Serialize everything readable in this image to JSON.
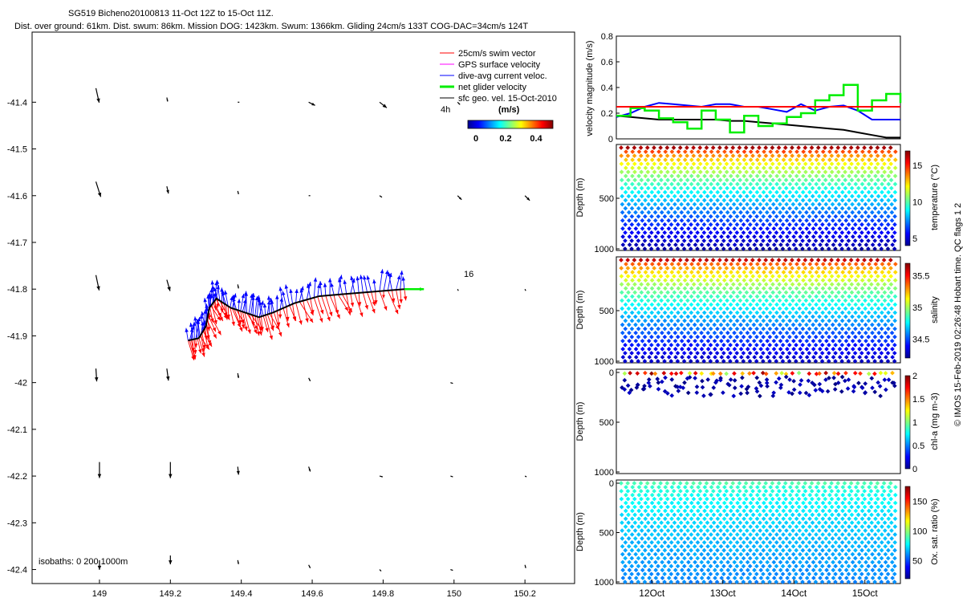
{
  "figure": {
    "title_line1": "SG519 Bicheno20100813 11-Oct 12Z to 15-Oct 11Z.",
    "title_line2": "Dist. over ground: 61km. Dist. swum: 86km. Mission DOG: 1423km. Swum: 1366km. Gliding 24cm/s 133T COG-DAC=34cm/s 124T",
    "credit": "© IMOS 15-Feb-2019 02:26:48 Hobart time. QC flags 1 2"
  },
  "colors": {
    "swim": "#ff0000",
    "gps": "#ff00ff",
    "dac": "#0000ff",
    "net": "#00ee00",
    "sfc": "#000000"
  },
  "chart_data": [
    {
      "type": "map-vectors",
      "x_ticks": [
        "149",
        "149.2",
        "149.4",
        "149.6",
        "149.8",
        "150",
        "150.2"
      ],
      "y_ticks": [
        "-41.4",
        "-41.5",
        "-41.6",
        "-41.7",
        "-41.8",
        "-41.9",
        "-42",
        "-42.1",
        "-42.2",
        "-42.3",
        "-42.4"
      ],
      "xlim": [
        148.81,
        150.34
      ],
      "ylim": [
        -42.43,
        -41.25
      ],
      "legend": [
        {
          "label": "25cm/s swim vector",
          "color": "#ff0000"
        },
        {
          "label": "GPS surface velocity",
          "color": "#ff00ff"
        },
        {
          "label": "dive-avg current veloc.",
          "color": "#0000ff"
        },
        {
          "label": "net glider velocity",
          "color": "#00ee00"
        },
        {
          "label": "sfc geo. vel. 15-Oct-2010",
          "color": "#000000"
        }
      ],
      "colorbar": {
        "label": "(m/s)",
        "ticks": [
          "0",
          "0.2",
          "0.4"
        ],
        "range": [
          0,
          0.55
        ]
      },
      "annotations": {
        "interval": "4h",
        "day_marker": "16",
        "isobaths": "isobaths: 0   200  1000m"
      },
      "track": [
        {
          "lon": 149.25,
          "lat": -41.91
        },
        {
          "lon": 149.28,
          "lat": -41.905
        },
        {
          "lon": 149.3,
          "lat": -41.88
        },
        {
          "lon": 149.31,
          "lat": -41.84
        },
        {
          "lon": 149.33,
          "lat": -41.82
        },
        {
          "lon": 149.37,
          "lat": -41.84
        },
        {
          "lon": 149.41,
          "lat": -41.85
        },
        {
          "lon": 149.45,
          "lat": -41.86
        },
        {
          "lon": 149.49,
          "lat": -41.85
        },
        {
          "lon": 149.55,
          "lat": -41.83
        },
        {
          "lon": 149.62,
          "lat": -41.815
        },
        {
          "lon": 149.7,
          "lat": -41.81
        },
        {
          "lon": 149.78,
          "lat": -41.805
        },
        {
          "lon": 149.86,
          "lat": -41.8
        }
      ],
      "net_velocity": {
        "lon": 149.86,
        "lat": -41.8,
        "dlon": 0.055,
        "dlat": 0
      },
      "surface_vectors": [
        {
          "lon": 148.99,
          "lat": -41.37,
          "u": 0.04,
          "v": -0.18
        },
        {
          "lon": 149.19,
          "lat": -41.39,
          "u": 0.01,
          "v": -0.05
        },
        {
          "lon": 149.39,
          "lat": -41.4,
          "u": 0.02,
          "v": 0.0
        },
        {
          "lon": 149.59,
          "lat": -41.4,
          "u": 0.08,
          "v": -0.04
        },
        {
          "lon": 149.79,
          "lat": -41.4,
          "u": 0.09,
          "v": -0.07
        },
        {
          "lon": 150.01,
          "lat": -41.4,
          "u": 0.03,
          "v": -0.03
        },
        {
          "lon": 148.99,
          "lat": -41.57,
          "u": 0.06,
          "v": -0.19
        },
        {
          "lon": 149.19,
          "lat": -41.58,
          "u": 0.02,
          "v": -0.09
        },
        {
          "lon": 149.39,
          "lat": -41.59,
          "u": 0.01,
          "v": -0.04
        },
        {
          "lon": 149.59,
          "lat": -41.6,
          "u": 0.02,
          "v": 0.0
        },
        {
          "lon": 149.79,
          "lat": -41.6,
          "u": 0.03,
          "v": -0.02
        },
        {
          "lon": 150.01,
          "lat": -41.6,
          "u": 0.05,
          "v": -0.05
        },
        {
          "lon": 150.2,
          "lat": -41.6,
          "u": 0.06,
          "v": -0.06
        },
        {
          "lon": 148.99,
          "lat": -41.77,
          "u": 0.04,
          "v": -0.19
        },
        {
          "lon": 149.19,
          "lat": -41.78,
          "u": 0.04,
          "v": -0.14
        },
        {
          "lon": 149.39,
          "lat": -41.79,
          "u": 0.01,
          "v": -0.05
        },
        {
          "lon": 150.01,
          "lat": -41.8,
          "u": 0.01,
          "v": -0.02
        },
        {
          "lon": 150.2,
          "lat": -41.8,
          "u": 0.01,
          "v": -0.02
        },
        {
          "lon": 148.99,
          "lat": -41.97,
          "u": 0.01,
          "v": -0.16
        },
        {
          "lon": 149.19,
          "lat": -41.97,
          "u": 0.02,
          "v": -0.15
        },
        {
          "lon": 149.39,
          "lat": -41.98,
          "u": 0.01,
          "v": -0.06
        },
        {
          "lon": 149.59,
          "lat": -41.99,
          "u": 0.02,
          "v": -0.04
        },
        {
          "lon": 149.99,
          "lat": -42.0,
          "u": 0.03,
          "v": -0.01
        },
        {
          "lon": 149.0,
          "lat": -42.17,
          "u": 0.0,
          "v": -0.2
        },
        {
          "lon": 149.2,
          "lat": -42.17,
          "u": 0.0,
          "v": -0.2
        },
        {
          "lon": 149.39,
          "lat": -42.18,
          "u": 0.01,
          "v": -0.1
        },
        {
          "lon": 149.59,
          "lat": -42.18,
          "u": 0.02,
          "v": -0.06
        },
        {
          "lon": 149.79,
          "lat": -42.2,
          "u": 0.04,
          "v": -0.01
        },
        {
          "lon": 149.99,
          "lat": -42.2,
          "u": 0.03,
          "v": -0.01
        },
        {
          "lon": 150.2,
          "lat": -42.2,
          "u": 0.02,
          "v": -0.01
        },
        {
          "lon": 149.0,
          "lat": -42.38,
          "u": 0.0,
          "v": -0.12
        },
        {
          "lon": 149.2,
          "lat": -42.37,
          "u": 0.0,
          "v": -0.11
        },
        {
          "lon": 149.39,
          "lat": -42.38,
          "u": 0.01,
          "v": -0.05
        },
        {
          "lon": 149.59,
          "lat": -42.39,
          "u": 0.02,
          "v": -0.04
        },
        {
          "lon": 149.79,
          "lat": -42.4,
          "u": 0.02,
          "v": -0.02
        },
        {
          "lon": 149.99,
          "lat": -42.4,
          "u": 0.03,
          "v": -0.01
        },
        {
          "lon": 150.2,
          "lat": -42.39,
          "u": 0.01,
          "v": -0.04
        }
      ]
    },
    {
      "type": "line",
      "ylabel": "velocity magnitude (m/s)",
      "ylim": [
        0,
        0.8
      ],
      "y_ticks": [
        0,
        0.2,
        0.4,
        0.6,
        0.8
      ],
      "x": [
        11.5,
        11.7,
        11.9,
        12.1,
        12.3,
        12.5,
        12.7,
        12.9,
        13.1,
        13.3,
        13.5,
        13.7,
        13.9,
        14.1,
        14.3,
        14.5,
        14.7,
        14.9,
        15.1,
        15.3,
        15.5
      ],
      "series": [
        {
          "color": "#0000ff",
          "values": [
            0.17,
            0.2,
            0.25,
            0.28,
            0.27,
            0.26,
            0.25,
            0.27,
            0.27,
            0.25,
            0.25,
            0.23,
            0.21,
            0.27,
            0.22,
            0.25,
            0.26,
            0.22,
            0.15,
            0.15,
            0.15
          ]
        },
        {
          "color": "#000000",
          "values": [
            0.18,
            0.17,
            0.16,
            0.15,
            0.15,
            0.15,
            0.15,
            0.15,
            0.14,
            0.14,
            0.13,
            0.12,
            0.11,
            0.1,
            0.09,
            0.08,
            0.07,
            0.05,
            0.03,
            0.01,
            0.01
          ]
        },
        {
          "color": "#00ee00",
          "values": [
            0.18,
            0.24,
            0.22,
            0.16,
            0.13,
            0.08,
            0.22,
            0.15,
            0.05,
            0.18,
            0.1,
            0.12,
            0.17,
            0.2,
            0.3,
            0.34,
            0.42,
            0.22,
            0.3,
            0.35,
            0.28
          ]
        },
        {
          "color": "#ff0000",
          "values": [
            0.25,
            0.25,
            0.25,
            0.25,
            0.25,
            0.25,
            0.25,
            0.25,
            0.25,
            0.25,
            0.25,
            0.25,
            0.25,
            0.25,
            0.25,
            0.25,
            0.25,
            0.25,
            0.25,
            0.25,
            0.25
          ]
        }
      ]
    },
    {
      "type": "scatter",
      "variable": "temperature",
      "ylabel": "Depth (m)",
      "ylim": [
        1000,
        0
      ],
      "y_ticks": [
        500,
        1000
      ],
      "colorbar": {
        "label": "temperature (°C)",
        "ticks": [
          5,
          10,
          15
        ],
        "range": [
          4,
          17
        ]
      },
      "profile_max_depth_m": 1000,
      "surface_value": 16.5,
      "bottom_value": 4.5
    },
    {
      "type": "scatter",
      "variable": "salinity",
      "ylabel": "Depth (m)",
      "ylim": [
        1000,
        0
      ],
      "y_ticks": [
        500,
        1000
      ],
      "colorbar": {
        "label": "salinity",
        "ticks": [
          34.5,
          35,
          35.5
        ],
        "range": [
          34.2,
          35.7
        ]
      },
      "profile_max_depth_m": 1000,
      "surface_value": 35.6,
      "bottom_value": 34.3
    },
    {
      "type": "scatter",
      "variable": "chl-a",
      "ylabel": "Depth (m)",
      "ylim": [
        1000,
        0
      ],
      "y_ticks": [
        0,
        500,
        1000
      ],
      "colorbar": {
        "label": "chl-a (mg m-3)",
        "ticks": [
          0,
          0.5,
          1,
          1.5,
          2
        ],
        "range": [
          0,
          2
        ]
      },
      "profile_max_depth_m": 250
    },
    {
      "type": "scatter",
      "variable": "oxygen",
      "ylabel": "Depth (m)",
      "ylim": [
        1000,
        0
      ],
      "y_ticks": [
        0,
        500,
        1000
      ],
      "x_ticks": [
        "12Oct",
        "13Oct",
        "14Oct",
        "15Oct"
      ],
      "colorbar": {
        "label": "Ox. sat. ratio (%)",
        "ticks": [
          50,
          100,
          150
        ],
        "range": [
          20,
          175
        ]
      },
      "profile_max_depth_m": 1000,
      "surface_value": 90,
      "bottom_value": 60
    }
  ]
}
